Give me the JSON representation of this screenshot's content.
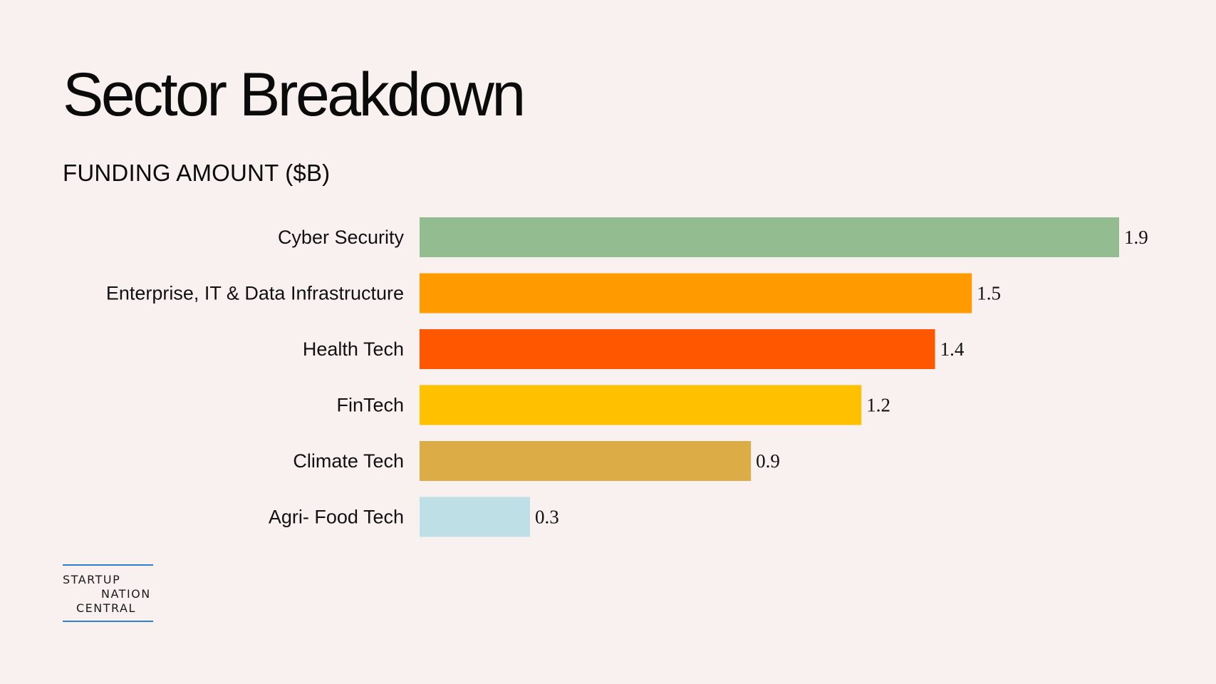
{
  "title": "Sector Breakdown",
  "subtitle": "FUNDING AMOUNT ($B)",
  "logo": {
    "line1": "STARTUP",
    "line2": "NATION",
    "line3": "CENTRAL",
    "accent_color": "#2d7fd3"
  },
  "chart_data": {
    "type": "bar",
    "orientation": "horizontal",
    "title": "Sector Breakdown",
    "subtitle": "FUNDING AMOUNT ($B)",
    "xlabel": "",
    "ylabel": "",
    "unit": "$B",
    "grid": false,
    "xlim": [
      0,
      1.9
    ],
    "categories": [
      "Cyber Security",
      "Enterprise, IT & Data Infrastructure",
      "Health Tech",
      "FinTech",
      "Climate Tech",
      "Agri- Food Tech"
    ],
    "values": [
      1.9,
      1.5,
      1.4,
      1.2,
      0.9,
      0.3
    ],
    "value_labels": [
      "1.9",
      "1.5",
      "1.4",
      "1.2",
      "0.9",
      "0.3"
    ],
    "colors": [
      "#93bd91",
      "#ff9b00",
      "#ff5700",
      "#ffc000",
      "#dcad47",
      "#bfdfe7"
    ]
  }
}
